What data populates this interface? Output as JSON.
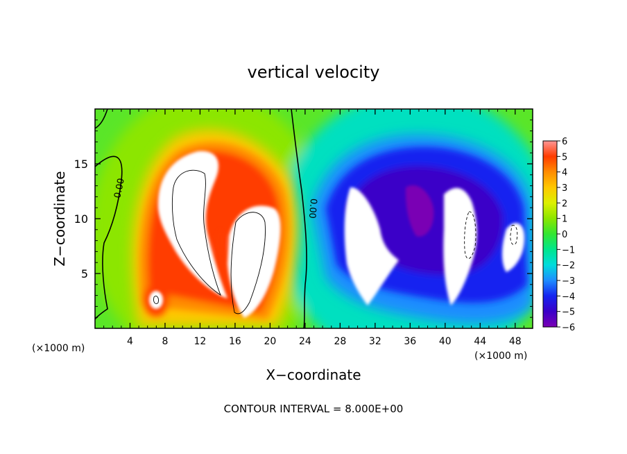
{
  "chart_data": {
    "type": "heatmap",
    "title": "vertical velocity",
    "xlabel": "X−coordinate",
    "ylabel": "Z−coordinate",
    "x_unit_left": "(×1000 m)",
    "x_unit_right": "(×1000 m)",
    "footer": "CONTOUR INTERVAL = 8.000E+00",
    "xlim": [
      0,
      50
    ],
    "ylim": [
      0,
      20
    ],
    "x_ticks": [
      4,
      8,
      12,
      16,
      20,
      24,
      28,
      32,
      36,
      40,
      44,
      48
    ],
    "y_ticks": [
      5,
      10,
      15
    ],
    "contour_labels": [
      "0.00",
      "0.00"
    ],
    "colorbar": {
      "min": -6,
      "max": 6,
      "tick_values": [
        6,
        5,
        4,
        3,
        2,
        1,
        0,
        -1,
        -2,
        -3,
        -4,
        -5,
        -6
      ],
      "tick_labels": [
        "6",
        "5",
        "4",
        "3",
        "2",
        "1",
        "0",
        "−1",
        "−2",
        "−3",
        "−4",
        "−5",
        "−6"
      ]
    },
    "colors": {
      "neg6": "#7a00b4",
      "neg5": "#3a00c8",
      "neg4": "#1424f0",
      "neg3": "#1e8cff",
      "neg2": "#00dcdc",
      "neg1": "#00e68c",
      "zero": "#32e632",
      "pos1": "#8ce600",
      "pos2": "#dcf000",
      "pos3": "#ffc800",
      "pos4": "#ff8c00",
      "pos5": "#ff3c00",
      "pos6": "#ff2828",
      "pos_top": "#ff9696",
      "saturated": "#ffffff"
    }
  }
}
